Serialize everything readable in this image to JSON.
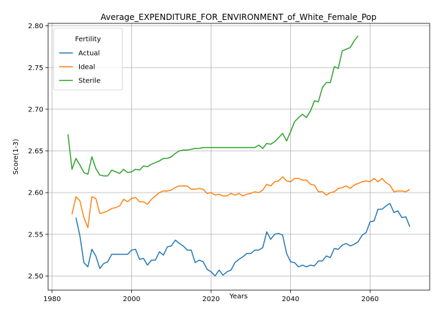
{
  "chart_data": {
    "type": "line",
    "title": "Average_EXPENDITURE_FOR_ENVIRONMENT_of_White_Female_Pop",
    "xlabel": "Years",
    "ylabel": "Score(1-3)",
    "xlim": [
      1979,
      2075
    ],
    "ylim": [
      2.483,
      2.803
    ],
    "xticks": [
      1980,
      2000,
      2020,
      2040,
      2060
    ],
    "yticks": [
      2.5,
      2.55,
      2.6,
      2.65,
      2.7,
      2.75,
      2.8
    ],
    "xtick_labels": [
      "1980",
      "2000",
      "2020",
      "2040",
      "2060"
    ],
    "ytick_labels": [
      "2.50",
      "2.55",
      "2.60",
      "2.65",
      "2.70",
      "2.75",
      "2.80"
    ],
    "grid": true,
    "legend": {
      "title": "Fertility",
      "location": "top-left"
    },
    "series": [
      {
        "name": "Actual",
        "color": "#1f77b4",
        "x": [
          1986,
          1987,
          1988,
          1989,
          1990,
          1991,
          1992,
          1993,
          1994,
          1995,
          1996,
          1997,
          1998,
          1999,
          2000,
          2001,
          2002,
          2003,
          2004,
          2005,
          2006,
          2007,
          2008,
          2009,
          2010,
          2011,
          2012,
          2013,
          2014,
          2015,
          2016,
          2017,
          2018,
          2019,
          2020,
          2021,
          2022,
          2023,
          2024,
          2025,
          2026,
          2027,
          2028,
          2029,
          2030,
          2031,
          2032,
          2033,
          2034,
          2035,
          2036,
          2037,
          2038,
          2039,
          2040,
          2041,
          2042,
          2043,
          2044,
          2045,
          2046,
          2047,
          2048,
          2049,
          2050,
          2051,
          2052,
          2053,
          2054,
          2055,
          2056,
          2057,
          2058,
          2059,
          2060,
          2061,
          2062,
          2063,
          2064,
          2065,
          2066,
          2067,
          2068,
          2069,
          2070
        ],
        "values": [
          2.57,
          2.548,
          2.516,
          2.511,
          2.532,
          2.524,
          2.509,
          2.515,
          2.517,
          2.526,
          2.526,
          2.526,
          2.526,
          2.526,
          2.531,
          2.532,
          2.52,
          2.521,
          2.513,
          2.519,
          2.519,
          2.529,
          2.525,
          2.535,
          2.536,
          2.543,
          2.539,
          2.536,
          2.531,
          2.531,
          2.516,
          2.519,
          2.517,
          2.508,
          2.505,
          2.5,
          2.507,
          2.501,
          2.505,
          2.507,
          2.516,
          2.52,
          2.523,
          2.527,
          2.527,
          2.531,
          2.531,
          2.534,
          2.553,
          2.544,
          2.55,
          2.551,
          2.549,
          2.527,
          2.517,
          2.516,
          2.511,
          2.513,
          2.511,
          2.513,
          2.512,
          2.518,
          2.518,
          2.524,
          2.522,
          2.533,
          2.532,
          2.537,
          2.539,
          2.536,
          2.538,
          2.541,
          2.549,
          2.552,
          2.565,
          2.566,
          2.58,
          2.58,
          2.584,
          2.587,
          2.576,
          2.578,
          2.57,
          2.571,
          2.559
        ]
      },
      {
        "name": "Ideal",
        "color": "#ff7f0e",
        "x": [
          1985,
          1986,
          1987,
          1988,
          1989,
          1990,
          1991,
          1992,
          1993,
          1994,
          1995,
          1996,
          1997,
          1998,
          1999,
          2000,
          2001,
          2002,
          2003,
          2004,
          2005,
          2006,
          2007,
          2008,
          2009,
          2010,
          2011,
          2012,
          2013,
          2014,
          2015,
          2016,
          2017,
          2018,
          2019,
          2020,
          2021,
          2022,
          2023,
          2024,
          2025,
          2026,
          2027,
          2028,
          2029,
          2030,
          2031,
          2032,
          2033,
          2034,
          2035,
          2036,
          2037,
          2038,
          2039,
          2040,
          2041,
          2042,
          2043,
          2044,
          2045,
          2046,
          2047,
          2048,
          2049,
          2050,
          2051,
          2052,
          2053,
          2054,
          2055,
          2056,
          2057,
          2058,
          2059,
          2060,
          2061,
          2062,
          2063,
          2064,
          2065,
          2066,
          2067,
          2068,
          2069,
          2070
        ],
        "values": [
          2.574,
          2.595,
          2.59,
          2.57,
          2.558,
          2.595,
          2.593,
          2.575,
          2.576,
          2.578,
          2.581,
          2.582,
          2.584,
          2.592,
          2.589,
          2.593,
          2.594,
          2.589,
          2.589,
          2.586,
          2.592,
          2.596,
          2.6,
          2.602,
          2.602,
          2.603,
          2.606,
          2.608,
          2.608,
          2.608,
          2.604,
          2.604,
          2.605,
          2.604,
          2.599,
          2.6,
          2.597,
          2.598,
          2.596,
          2.596,
          2.599,
          2.597,
          2.599,
          2.596,
          2.598,
          2.599,
          2.601,
          2.6,
          2.603,
          2.61,
          2.608,
          2.613,
          2.614,
          2.619,
          2.614,
          2.613,
          2.617,
          2.617,
          2.615,
          2.615,
          2.61,
          2.609,
          2.601,
          2.601,
          2.597,
          2.6,
          2.601,
          2.605,
          2.606,
          2.608,
          2.605,
          2.609,
          2.611,
          2.613,
          2.614,
          2.613,
          2.617,
          2.613,
          2.617,
          2.612,
          2.609,
          2.601,
          2.602,
          2.602,
          2.601,
          2.604
        ]
      },
      {
        "name": "Sterile",
        "color": "#2ca02c",
        "x": [
          1984,
          1985,
          1986,
          1987,
          1988,
          1989,
          1990,
          1991,
          1992,
          1993,
          1994,
          1995,
          1996,
          1997,
          1998,
          1999,
          2000,
          2001,
          2002,
          2003,
          2004,
          2005,
          2006,
          2007,
          2008,
          2009,
          2010,
          2011,
          2012,
          2013,
          2014,
          2015,
          2016,
          2017,
          2018,
          2019,
          2020,
          2021,
          2022,
          2023,
          2024,
          2025,
          2026,
          2027,
          2028,
          2029,
          2030,
          2031,
          2032,
          2033,
          2034,
          2035,
          2036,
          2037,
          2038,
          2039,
          2040,
          2041,
          2042,
          2043,
          2044,
          2045,
          2046,
          2047,
          2048,
          2049,
          2050,
          2051,
          2052,
          2053,
          2054,
          2055,
          2056,
          2057
        ],
        "values": [
          2.67,
          2.628,
          2.641,
          2.633,
          2.624,
          2.622,
          2.643,
          2.629,
          2.621,
          2.62,
          2.62,
          2.627,
          2.625,
          2.623,
          2.628,
          2.624,
          2.625,
          2.628,
          2.627,
          2.632,
          2.631,
          2.634,
          2.636,
          2.638,
          2.641,
          2.641,
          2.643,
          2.647,
          2.65,
          2.651,
          2.651,
          2.652,
          2.653,
          2.653,
          2.654,
          2.654,
          2.654,
          2.654,
          2.654,
          2.654,
          2.654,
          2.654,
          2.654,
          2.654,
          2.654,
          2.654,
          2.654,
          2.654,
          2.657,
          2.653,
          2.659,
          2.658,
          2.661,
          2.666,
          2.671,
          2.662,
          2.673,
          2.685,
          2.69,
          2.694,
          2.69,
          2.698,
          2.71,
          2.709,
          2.726,
          2.732,
          2.732,
          2.751,
          2.749,
          2.77,
          2.772,
          2.774,
          2.782,
          2.788
        ]
      }
    ]
  }
}
